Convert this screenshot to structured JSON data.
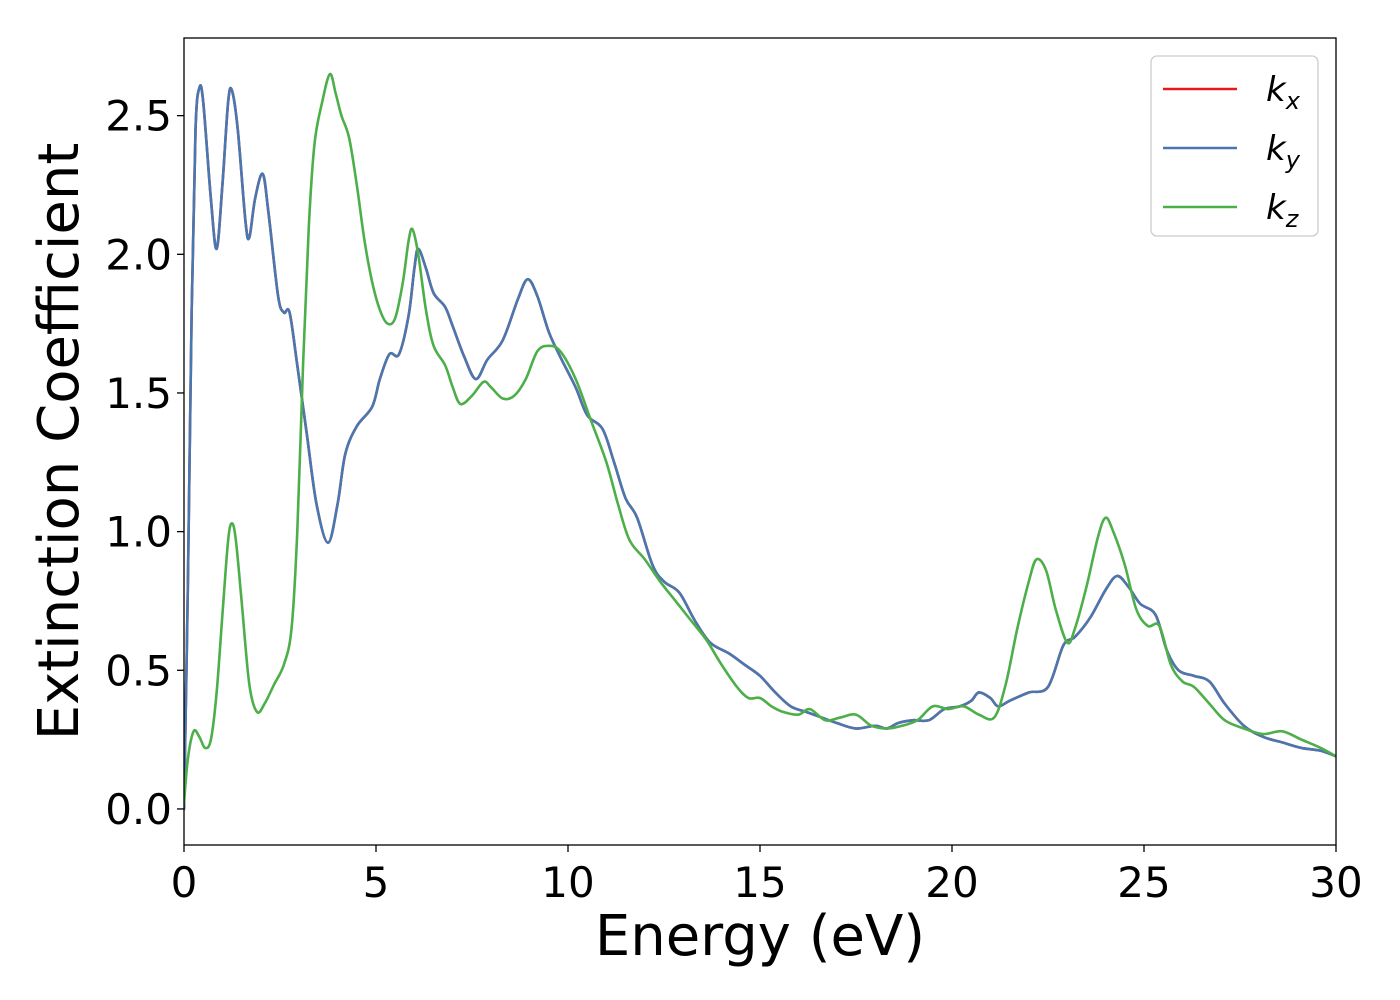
{
  "chart_data": {
    "type": "line",
    "title": "",
    "xlabel": "Energy (eV)",
    "ylabel": "Extinction Coefficient",
    "xlim": [
      0,
      30
    ],
    "ylim": [
      -0.13,
      2.78
    ],
    "xticks": [
      0,
      5,
      10,
      15,
      20,
      25,
      30
    ],
    "yticks": [
      0.0,
      0.5,
      1.0,
      1.5,
      2.0,
      2.5
    ],
    "grid": false,
    "legend_position": "top-right",
    "series": [
      {
        "name": "kx",
        "symbol": "k",
        "subscript": "x",
        "color": "#e41a1c",
        "points": [
          [
            0.0,
            0.0
          ],
          [
            0.1,
            0.8
          ],
          [
            0.2,
            1.8
          ],
          [
            0.3,
            2.45
          ],
          [
            0.4,
            2.6
          ],
          [
            0.5,
            2.55
          ],
          [
            0.7,
            2.2
          ],
          [
            0.85,
            2.02
          ],
          [
            1.0,
            2.25
          ],
          [
            1.15,
            2.55
          ],
          [
            1.25,
            2.59
          ],
          [
            1.4,
            2.45
          ],
          [
            1.6,
            2.12
          ],
          [
            1.7,
            2.06
          ],
          [
            1.85,
            2.2
          ],
          [
            2.05,
            2.29
          ],
          [
            2.2,
            2.15
          ],
          [
            2.45,
            1.85
          ],
          [
            2.6,
            1.79
          ],
          [
            2.75,
            1.79
          ],
          [
            2.95,
            1.6
          ],
          [
            3.2,
            1.35
          ],
          [
            3.45,
            1.1
          ],
          [
            3.75,
            0.96
          ],
          [
            4.0,
            1.1
          ],
          [
            4.2,
            1.28
          ],
          [
            4.5,
            1.38
          ],
          [
            4.9,
            1.45
          ],
          [
            5.1,
            1.55
          ],
          [
            5.35,
            1.64
          ],
          [
            5.6,
            1.64
          ],
          [
            5.85,
            1.78
          ],
          [
            6.0,
            1.95
          ],
          [
            6.1,
            2.02
          ],
          [
            6.3,
            1.95
          ],
          [
            6.5,
            1.86
          ],
          [
            6.8,
            1.81
          ],
          [
            7.0,
            1.74
          ],
          [
            7.3,
            1.63
          ],
          [
            7.6,
            1.55
          ],
          [
            7.9,
            1.62
          ],
          [
            8.3,
            1.69
          ],
          [
            8.7,
            1.84
          ],
          [
            8.95,
            1.91
          ],
          [
            9.2,
            1.85
          ],
          [
            9.5,
            1.72
          ],
          [
            9.8,
            1.63
          ],
          [
            10.2,
            1.52
          ],
          [
            10.5,
            1.42
          ],
          [
            10.9,
            1.37
          ],
          [
            11.2,
            1.25
          ],
          [
            11.5,
            1.12
          ],
          [
            11.8,
            1.05
          ],
          [
            12.2,
            0.88
          ],
          [
            12.5,
            0.82
          ],
          [
            12.9,
            0.78
          ],
          [
            13.3,
            0.68
          ],
          [
            13.7,
            0.6
          ],
          [
            14.2,
            0.56
          ],
          [
            14.6,
            0.52
          ],
          [
            15.0,
            0.48
          ],
          [
            15.4,
            0.42
          ],
          [
            15.8,
            0.37
          ],
          [
            16.2,
            0.35
          ],
          [
            16.6,
            0.33
          ],
          [
            17.0,
            0.31
          ],
          [
            17.5,
            0.29
          ],
          [
            18.0,
            0.3
          ],
          [
            18.3,
            0.29
          ],
          [
            18.6,
            0.31
          ],
          [
            19.0,
            0.32
          ],
          [
            19.4,
            0.32
          ],
          [
            19.8,
            0.36
          ],
          [
            20.2,
            0.37
          ],
          [
            20.5,
            0.39
          ],
          [
            20.7,
            0.42
          ],
          [
            21.0,
            0.4
          ],
          [
            21.2,
            0.37
          ],
          [
            21.5,
            0.39
          ],
          [
            22.0,
            0.42
          ],
          [
            22.5,
            0.44
          ],
          [
            22.9,
            0.59
          ],
          [
            23.2,
            0.62
          ],
          [
            23.6,
            0.69
          ],
          [
            24.0,
            0.79
          ],
          [
            24.3,
            0.84
          ],
          [
            24.6,
            0.8
          ],
          [
            24.9,
            0.74
          ],
          [
            25.3,
            0.7
          ],
          [
            25.6,
            0.57
          ],
          [
            25.9,
            0.5
          ],
          [
            26.3,
            0.48
          ],
          [
            26.7,
            0.46
          ],
          [
            27.1,
            0.38
          ],
          [
            27.6,
            0.3
          ],
          [
            28.1,
            0.26
          ],
          [
            28.6,
            0.24
          ],
          [
            29.1,
            0.22
          ],
          [
            29.6,
            0.21
          ],
          [
            30.0,
            0.19
          ]
        ]
      },
      {
        "name": "ky",
        "symbol": "k",
        "subscript": "y",
        "color": "#4878b0",
        "points": [
          [
            0.0,
            0.0
          ],
          [
            0.1,
            0.8
          ],
          [
            0.2,
            1.8
          ],
          [
            0.3,
            2.45
          ],
          [
            0.4,
            2.6
          ],
          [
            0.5,
            2.55
          ],
          [
            0.7,
            2.2
          ],
          [
            0.85,
            2.02
          ],
          [
            1.0,
            2.25
          ],
          [
            1.15,
            2.55
          ],
          [
            1.25,
            2.59
          ],
          [
            1.4,
            2.45
          ],
          [
            1.6,
            2.12
          ],
          [
            1.7,
            2.06
          ],
          [
            1.85,
            2.2
          ],
          [
            2.05,
            2.29
          ],
          [
            2.2,
            2.15
          ],
          [
            2.45,
            1.85
          ],
          [
            2.6,
            1.79
          ],
          [
            2.75,
            1.79
          ],
          [
            2.95,
            1.6
          ],
          [
            3.2,
            1.35
          ],
          [
            3.45,
            1.1
          ],
          [
            3.75,
            0.96
          ],
          [
            4.0,
            1.1
          ],
          [
            4.2,
            1.28
          ],
          [
            4.5,
            1.38
          ],
          [
            4.9,
            1.45
          ],
          [
            5.1,
            1.55
          ],
          [
            5.35,
            1.64
          ],
          [
            5.6,
            1.64
          ],
          [
            5.85,
            1.78
          ],
          [
            6.0,
            1.95
          ],
          [
            6.1,
            2.02
          ],
          [
            6.3,
            1.95
          ],
          [
            6.5,
            1.86
          ],
          [
            6.8,
            1.81
          ],
          [
            7.0,
            1.74
          ],
          [
            7.3,
            1.63
          ],
          [
            7.6,
            1.55
          ],
          [
            7.9,
            1.62
          ],
          [
            8.3,
            1.69
          ],
          [
            8.7,
            1.84
          ],
          [
            8.95,
            1.91
          ],
          [
            9.2,
            1.85
          ],
          [
            9.5,
            1.72
          ],
          [
            9.8,
            1.63
          ],
          [
            10.2,
            1.52
          ],
          [
            10.5,
            1.42
          ],
          [
            10.9,
            1.37
          ],
          [
            11.2,
            1.25
          ],
          [
            11.5,
            1.12
          ],
          [
            11.8,
            1.05
          ],
          [
            12.2,
            0.88
          ],
          [
            12.5,
            0.82
          ],
          [
            12.9,
            0.78
          ],
          [
            13.3,
            0.68
          ],
          [
            13.7,
            0.6
          ],
          [
            14.2,
            0.56
          ],
          [
            14.6,
            0.52
          ],
          [
            15.0,
            0.48
          ],
          [
            15.4,
            0.42
          ],
          [
            15.8,
            0.37
          ],
          [
            16.2,
            0.35
          ],
          [
            16.6,
            0.33
          ],
          [
            17.0,
            0.31
          ],
          [
            17.5,
            0.29
          ],
          [
            18.0,
            0.3
          ],
          [
            18.3,
            0.29
          ],
          [
            18.6,
            0.31
          ],
          [
            19.0,
            0.32
          ],
          [
            19.4,
            0.32
          ],
          [
            19.8,
            0.36
          ],
          [
            20.2,
            0.37
          ],
          [
            20.5,
            0.39
          ],
          [
            20.7,
            0.42
          ],
          [
            21.0,
            0.4
          ],
          [
            21.2,
            0.37
          ],
          [
            21.5,
            0.39
          ],
          [
            22.0,
            0.42
          ],
          [
            22.5,
            0.44
          ],
          [
            22.9,
            0.59
          ],
          [
            23.2,
            0.62
          ],
          [
            23.6,
            0.69
          ],
          [
            24.0,
            0.79
          ],
          [
            24.3,
            0.84
          ],
          [
            24.6,
            0.8
          ],
          [
            24.9,
            0.74
          ],
          [
            25.3,
            0.7
          ],
          [
            25.6,
            0.57
          ],
          [
            25.9,
            0.5
          ],
          [
            26.3,
            0.48
          ],
          [
            26.7,
            0.46
          ],
          [
            27.1,
            0.38
          ],
          [
            27.6,
            0.3
          ],
          [
            28.1,
            0.26
          ],
          [
            28.6,
            0.24
          ],
          [
            29.1,
            0.22
          ],
          [
            29.6,
            0.21
          ],
          [
            30.0,
            0.19
          ]
        ]
      },
      {
        "name": "kz",
        "symbol": "k",
        "subscript": "z",
        "color": "#4daf4a",
        "points": [
          [
            0.0,
            0.02
          ],
          [
            0.1,
            0.18
          ],
          [
            0.25,
            0.28
          ],
          [
            0.4,
            0.26
          ],
          [
            0.55,
            0.22
          ],
          [
            0.7,
            0.25
          ],
          [
            0.85,
            0.42
          ],
          [
            1.0,
            0.7
          ],
          [
            1.15,
            0.97
          ],
          [
            1.25,
            1.03
          ],
          [
            1.35,
            0.97
          ],
          [
            1.5,
            0.75
          ],
          [
            1.7,
            0.45
          ],
          [
            1.9,
            0.35
          ],
          [
            2.1,
            0.38
          ],
          [
            2.35,
            0.45
          ],
          [
            2.6,
            0.52
          ],
          [
            2.8,
            0.65
          ],
          [
            2.95,
            1.0
          ],
          [
            3.1,
            1.6
          ],
          [
            3.25,
            2.1
          ],
          [
            3.4,
            2.4
          ],
          [
            3.6,
            2.55
          ],
          [
            3.8,
            2.65
          ],
          [
            3.95,
            2.58
          ],
          [
            4.1,
            2.5
          ],
          [
            4.3,
            2.42
          ],
          [
            4.5,
            2.25
          ],
          [
            4.7,
            2.05
          ],
          [
            4.9,
            1.9
          ],
          [
            5.1,
            1.8
          ],
          [
            5.3,
            1.75
          ],
          [
            5.5,
            1.77
          ],
          [
            5.7,
            1.9
          ],
          [
            5.85,
            2.05
          ],
          [
            5.95,
            2.09
          ],
          [
            6.1,
            2.0
          ],
          [
            6.3,
            1.8
          ],
          [
            6.5,
            1.67
          ],
          [
            6.8,
            1.6
          ],
          [
            7.0,
            1.52
          ],
          [
            7.2,
            1.46
          ],
          [
            7.5,
            1.49
          ],
          [
            7.8,
            1.54
          ],
          [
            8.0,
            1.52
          ],
          [
            8.3,
            1.48
          ],
          [
            8.6,
            1.49
          ],
          [
            8.9,
            1.55
          ],
          [
            9.2,
            1.65
          ],
          [
            9.5,
            1.67
          ],
          [
            9.8,
            1.65
          ],
          [
            10.2,
            1.55
          ],
          [
            10.6,
            1.4
          ],
          [
            11.0,
            1.25
          ],
          [
            11.3,
            1.1
          ],
          [
            11.6,
            0.97
          ],
          [
            12.0,
            0.9
          ],
          [
            12.4,
            0.82
          ],
          [
            12.8,
            0.75
          ],
          [
            13.2,
            0.68
          ],
          [
            13.6,
            0.61
          ],
          [
            14.0,
            0.52
          ],
          [
            14.4,
            0.44
          ],
          [
            14.7,
            0.4
          ],
          [
            15.0,
            0.4
          ],
          [
            15.3,
            0.37
          ],
          [
            15.6,
            0.35
          ],
          [
            16.0,
            0.34
          ],
          [
            16.3,
            0.36
          ],
          [
            16.7,
            0.32
          ],
          [
            17.1,
            0.33
          ],
          [
            17.5,
            0.34
          ],
          [
            17.9,
            0.3
          ],
          [
            18.3,
            0.29
          ],
          [
            18.7,
            0.3
          ],
          [
            19.1,
            0.32
          ],
          [
            19.5,
            0.37
          ],
          [
            19.9,
            0.36
          ],
          [
            20.3,
            0.37
          ],
          [
            20.7,
            0.34
          ],
          [
            21.1,
            0.33
          ],
          [
            21.4,
            0.45
          ],
          [
            21.7,
            0.65
          ],
          [
            22.0,
            0.82
          ],
          [
            22.2,
            0.9
          ],
          [
            22.45,
            0.86
          ],
          [
            22.7,
            0.72
          ],
          [
            23.0,
            0.6
          ],
          [
            23.2,
            0.65
          ],
          [
            23.5,
            0.8
          ],
          [
            23.8,
            0.98
          ],
          [
            24.0,
            1.05
          ],
          [
            24.2,
            1.0
          ],
          [
            24.5,
            0.88
          ],
          [
            24.8,
            0.72
          ],
          [
            25.1,
            0.66
          ],
          [
            25.4,
            0.66
          ],
          [
            25.7,
            0.52
          ],
          [
            26.0,
            0.46
          ],
          [
            26.3,
            0.44
          ],
          [
            26.7,
            0.38
          ],
          [
            27.1,
            0.32
          ],
          [
            27.6,
            0.29
          ],
          [
            28.1,
            0.27
          ],
          [
            28.6,
            0.28
          ],
          [
            29.1,
            0.25
          ],
          [
            29.6,
            0.22
          ],
          [
            30.0,
            0.19
          ]
        ]
      }
    ]
  }
}
